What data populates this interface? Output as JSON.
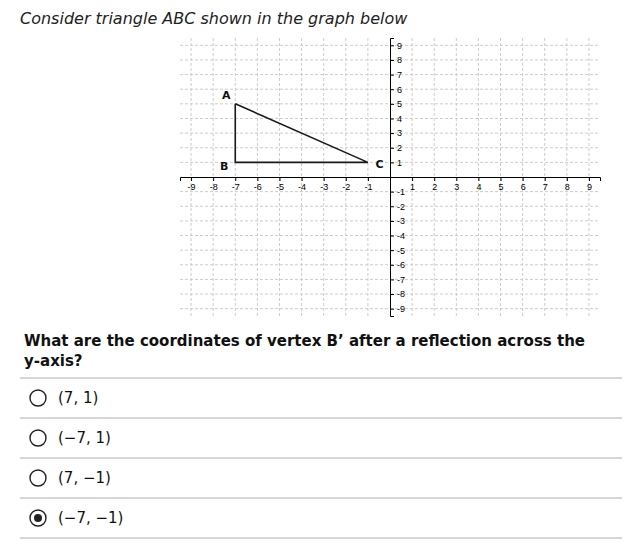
{
  "chart_data": {
    "type": "line",
    "title": "Consider triangle ABC shown in the graph below",
    "x": [
      -7,
      -7,
      -1,
      -7
    ],
    "values": [
      5,
      1,
      1,
      5
    ],
    "color": "#1a1a1a",
    "xlim": [
      -9.5,
      9.5
    ],
    "ylim": [
      -9.5,
      9.5
    ],
    "xticks": [
      -9,
      -8,
      -7,
      -6,
      -5,
      -4,
      -3,
      -2,
      -1,
      1,
      2,
      3,
      4,
      5,
      6,
      7,
      8,
      9
    ],
    "yticks": [
      -9,
      -8,
      -7,
      -6,
      -5,
      -4,
      -3,
      -2,
      -1,
      1,
      2,
      3,
      4,
      5,
      6,
      7,
      8,
      9
    ],
    "grid": true,
    "annotations": [
      {
        "text": "A",
        "x": -7,
        "y": 5
      },
      {
        "text": "B",
        "x": -7,
        "y": 1
      },
      {
        "text": "C",
        "x": -1,
        "y": 1
      }
    ],
    "question": "What are the coordinates of vertex B’ after a reflection across the y-axis?",
    "answer_choices": [
      "(7, 1)",
      "(−7, 1)",
      "(7, −1)",
      "(−7, −1)"
    ],
    "selected_answer_index": 3
  }
}
